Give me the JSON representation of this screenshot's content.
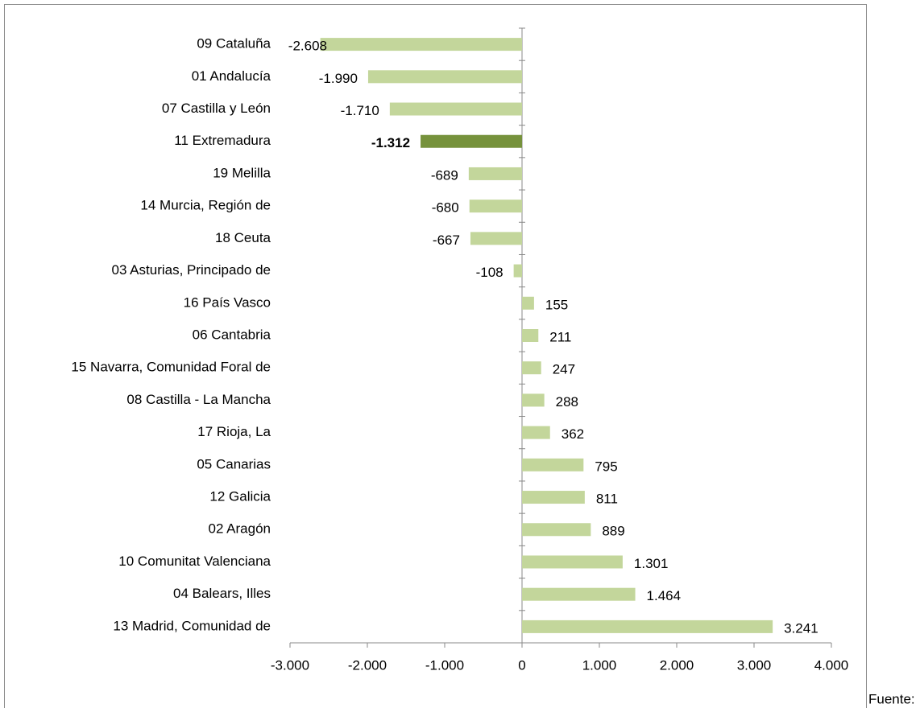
{
  "chart_data": {
    "type": "bar",
    "orientation": "horizontal",
    "categories": [
      "09 Cataluña",
      "01 Andalucía",
      "07 Castilla y León",
      "11 Extremadura",
      "19 Melilla",
      "14 Murcia, Región de",
      "18 Ceuta",
      "03 Asturias, Principado de",
      "16 País Vasco",
      "06 Cantabria",
      "15 Navarra, Comunidad Foral de",
      "08 Castilla - La Mancha",
      "17 Rioja, La",
      "05 Canarias",
      "12 Galicia",
      "02 Aragón",
      "10 Comunitat Valenciana",
      "04 Balears, Illes",
      "13 Madrid, Comunidad de"
    ],
    "values": [
      -2608,
      -1990,
      -1710,
      -1312,
      -689,
      -680,
      -667,
      -108,
      155,
      211,
      247,
      288,
      362,
      795,
      811,
      889,
      1301,
      1464,
      3241
    ],
    "value_labels": [
      "-2.608",
      "-1.990",
      "-1.710",
      "-1.312",
      "-689",
      "-680",
      "-667",
      "-108",
      "155",
      "211",
      "247",
      "288",
      "362",
      "795",
      "811",
      "889",
      "1.301",
      "1.464",
      "3.241"
    ],
    "color": "#c3d69b",
    "highlight": {
      "index": 3,
      "color": "#76923c"
    },
    "xlim": [
      -3000,
      4000
    ],
    "xticks": [
      {
        "value": -3000,
        "label": "-3.000"
      },
      {
        "value": -2000,
        "label": "-2.000"
      },
      {
        "value": -1000,
        "label": "-1.000"
      },
      0,
      {
        "value": 1000,
        "label": "1.000"
      },
      {
        "value": 2000,
        "label": "2.000"
      },
      {
        "value": 3000,
        "label": "3.000"
      },
      {
        "value": 4000,
        "label": "4.000"
      }
    ],
    "source": "Fuente:"
  }
}
